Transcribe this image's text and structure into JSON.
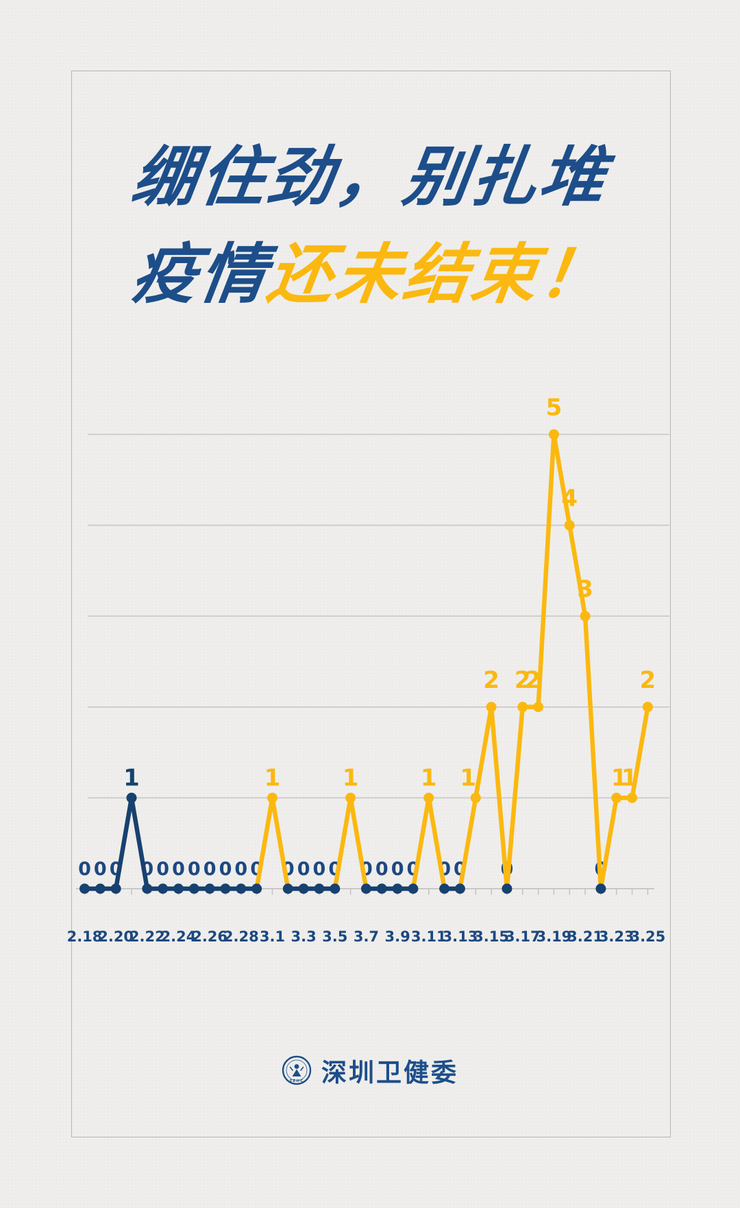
{
  "poster": {
    "title_line1": "绷住劲，别扎堆",
    "title_line2_blue": "疫情",
    "title_line2_yellow": "还未结束！"
  },
  "footer": {
    "org_name": "深圳卫健委",
    "badge_letters": "SZHC"
  },
  "colors": {
    "background": "#efeeec",
    "frame_border": "#b6b4b1",
    "title_navy": "#1d4e8a",
    "chart_navy": "#17416f",
    "label_navy": "#1c4880",
    "yellow": "#fbb810",
    "gridline": "#c8c7c4",
    "axis": "#c4c3c0"
  },
  "chart_data": {
    "type": "line",
    "categories": [
      "2.18",
      "2.19",
      "2.20",
      "2.21",
      "2.22",
      "2.23",
      "2.24",
      "2.25",
      "2.26",
      "2.27",
      "2.28",
      "2.29",
      "3.1",
      "3.2",
      "3.3",
      "3.4",
      "3.5",
      "3.6",
      "3.7",
      "3.8",
      "3.9",
      "3.10",
      "3.11",
      "3.12",
      "3.13",
      "3.14",
      "3.15",
      "3.16",
      "3.17",
      "3.18",
      "3.19",
      "3.20",
      "3.21",
      "3.22",
      "3.23",
      "3.24",
      "3.25"
    ],
    "values": [
      0,
      0,
      0,
      1,
      0,
      0,
      0,
      0,
      0,
      0,
      0,
      0,
      1,
      0,
      0,
      0,
      0,
      1,
      0,
      0,
      0,
      0,
      1,
      0,
      0,
      1,
      2,
      0,
      2,
      2,
      5,
      4,
      3,
      0,
      1,
      1,
      2
    ],
    "x_tick_labels": [
      "2.18",
      "2.20",
      "2.22",
      "2.24",
      "2.26",
      "2.28",
      "3.1",
      "3.3",
      "3.5",
      "3.7",
      "3.9",
      "3.11",
      "3.13",
      "3.15",
      "3.17",
      "3.19",
      "3.21",
      "3.23",
      "3.25"
    ],
    "title": "",
    "xlabel": "",
    "ylabel": "",
    "ylim": [
      0,
      5
    ],
    "grid_values": [
      1,
      2,
      3,
      4,
      5
    ],
    "grid": "horizontal",
    "legend": "none",
    "point_labels_shown": true,
    "blue_peak_date": "2.21",
    "label_offsets": {
      "3.14": [
        -11,
        0
      ],
      "3.18": [
        -8,
        0
      ],
      "3.23": [
        4,
        0
      ],
      "3.24": [
        -4,
        0
      ]
    }
  }
}
